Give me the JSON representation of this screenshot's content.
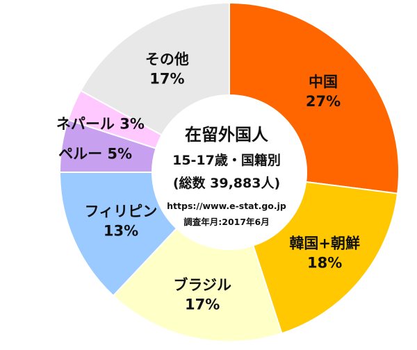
{
  "chart_data": {
    "type": "pie",
    "categories": [
      "中国",
      "韓国+朝鮮",
      "ブラジル",
      "フィリピン",
      "ペルー",
      "ネパール",
      "その他"
    ],
    "values": [
      27,
      18,
      17,
      13,
      5,
      3,
      17
    ],
    "value_labels": [
      "27%",
      "18%",
      "17%",
      "13%",
      "5%",
      "3%",
      "17%"
    ],
    "colors": [
      "#FF6600",
      "#FFC800",
      "#FFFFC8",
      "#9ACAFF",
      "#C8A0F0",
      "#FFC8FF",
      "#E8E8E8"
    ],
    "center": {
      "title": "在留外国人",
      "subtitle": "15-17歳・国籍別",
      "total": "(総数  39,883人)",
      "source": "https://www.e-stat.go.jp",
      "date": "調査年月:2017年6月"
    }
  }
}
